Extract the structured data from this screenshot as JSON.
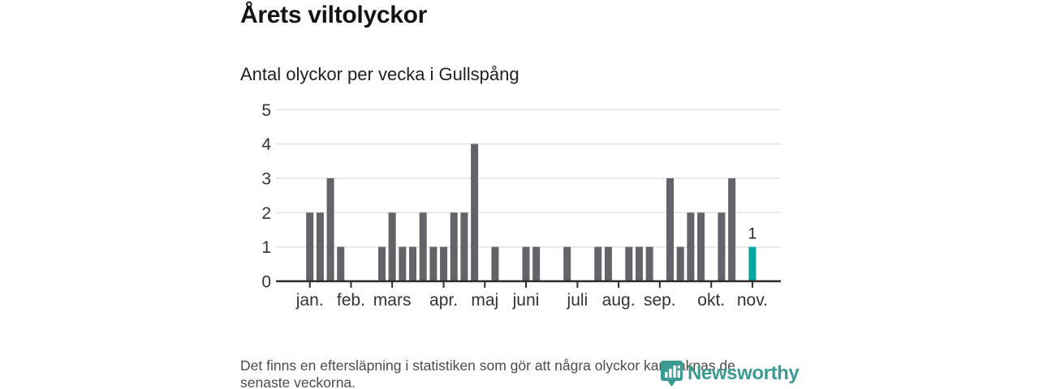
{
  "header": {
    "title": "Årets viltolyckor",
    "subtitle": "Antal olyckor per vecka i Gullspång"
  },
  "chart_data": {
    "type": "bar",
    "title": "Årets viltolyckor",
    "subtitle": "Antal olyckor per vecka i Gullspång",
    "x_unit": "vecka (week of year)",
    "categories_weeks": [
      1,
      2,
      3,
      4,
      5,
      6,
      7,
      8,
      9,
      10,
      11,
      12,
      13,
      14,
      15,
      16,
      17,
      18,
      19,
      20,
      21,
      22,
      23,
      24,
      25,
      26,
      27,
      28,
      29,
      30,
      31,
      32,
      33,
      34,
      35,
      36,
      37,
      38,
      39,
      40,
      41,
      42,
      43,
      44
    ],
    "values": [
      2,
      2,
      3,
      1,
      0,
      0,
      0,
      1,
      2,
      1,
      1,
      2,
      1,
      1,
      2,
      2,
      4,
      0,
      1,
      0,
      0,
      1,
      1,
      0,
      0,
      1,
      0,
      0,
      1,
      1,
      0,
      1,
      1,
      1,
      0,
      3,
      1,
      2,
      2,
      0,
      2,
      3,
      0,
      1
    ],
    "highlight_week": 44,
    "highlight_value_label": "1",
    "month_ticks": [
      {
        "week": 1,
        "label": "jan."
      },
      {
        "week": 5,
        "label": "feb."
      },
      {
        "week": 9,
        "label": "mars"
      },
      {
        "week": 14,
        "label": "apr."
      },
      {
        "week": 18,
        "label": "maj"
      },
      {
        "week": 22,
        "label": "juni"
      },
      {
        "week": 27,
        "label": "juli"
      },
      {
        "week": 31,
        "label": "aug."
      },
      {
        "week": 35,
        "label": "sep."
      },
      {
        "week": 40,
        "label": "okt."
      },
      {
        "week": 44,
        "label": "nov."
      }
    ],
    "ylim": [
      0,
      5
    ],
    "yticks": [
      0,
      1,
      2,
      3,
      4,
      5
    ],
    "grid": true,
    "legend": "none",
    "colors": {
      "bar": "#63636a",
      "highlight": "#00a79f",
      "grid": "#e4e4e4",
      "axis": "#2d2d2d",
      "tick_label": "#333333",
      "annotation": "#222222"
    }
  },
  "footer": {
    "lines": [
      "Det finns en eftersläpning i statistiken som gör att några olyckor kan saknas de",
      "senaste veckorna."
    ]
  },
  "logo": {
    "text": "Newsworthy",
    "color": "#3b9a92",
    "icon": "newsworthy-pin-chart-icon"
  }
}
